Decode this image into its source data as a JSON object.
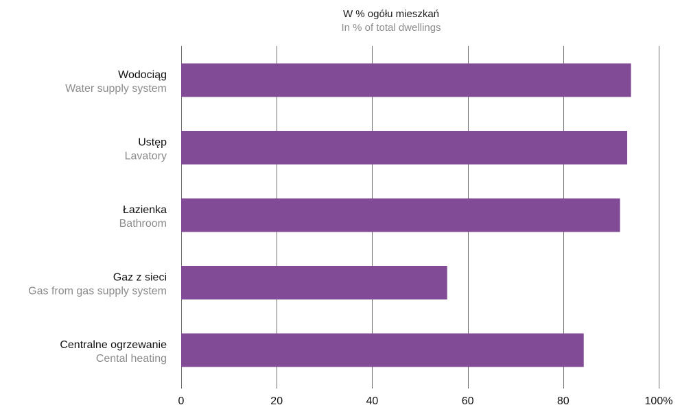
{
  "chart_data": {
    "type": "bar",
    "orientation": "horizontal",
    "title": "W % ogółu mieszkań",
    "subtitle": "In % of total dwellings",
    "categories": [
      {
        "label": "Wodociąg",
        "sublabel": "Water supply system"
      },
      {
        "label": "Ustęp",
        "sublabel": "Lavatory"
      },
      {
        "label": "Łazienka",
        "sublabel": "Bathroom"
      },
      {
        "label": "Gaz z sieci",
        "sublabel": "Gas from gas supply system"
      },
      {
        "label": "Centralne ogrzewanie",
        "sublabel": "Cental heating"
      }
    ],
    "values": [
      94.2,
      93.4,
      91.9,
      55.7,
      84.3
    ],
    "xlim": [
      0,
      100
    ],
    "ticks": [
      {
        "value": 0,
        "label": "0"
      },
      {
        "value": 20,
        "label": "20"
      },
      {
        "value": 40,
        "label": "40"
      },
      {
        "value": 60,
        "label": "60"
      },
      {
        "value": 80,
        "label": "80"
      },
      {
        "value": 100,
        "label": "100%"
      }
    ],
    "grid": true,
    "bar_color": "#824b96"
  }
}
